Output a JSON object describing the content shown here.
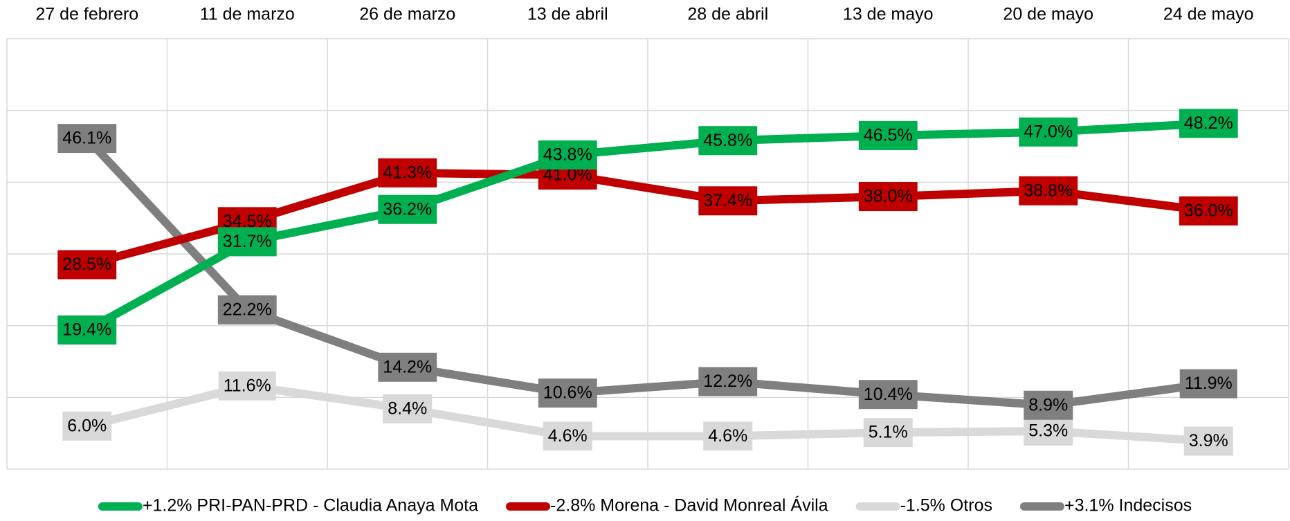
{
  "chart_data": {
    "type": "line",
    "categories": [
      "27 de febrero",
      "11 de marzo",
      "26 de marzo",
      "13 de abril",
      "28 de abril",
      "13 de mayo",
      "20 de mayo",
      "24 de mayo"
    ],
    "ylim": [
      0,
      60
    ],
    "yticks": [
      0,
      10,
      20,
      30,
      40,
      50,
      60
    ],
    "grid": true,
    "legend": "bottom",
    "series": [
      {
        "name": "+1.2% PRI-PAN-PRD - Claudia Anaya Mota",
        "color": "#00b050",
        "label_text_color": "#000000",
        "values": [
          19.4,
          31.7,
          36.2,
          43.8,
          45.8,
          46.5,
          47.0,
          48.2
        ],
        "value_labels": [
          "19.4%",
          "31.7%",
          "36.2%",
          "43.8%",
          "45.8%",
          "46.5%",
          "47.0%",
          "48.2%"
        ]
      },
      {
        "name": "-2.8% Morena - David Monreal Ávila",
        "color": "#c00000",
        "label_text_color": "#ffffff",
        "values": [
          28.5,
          34.5,
          41.3,
          41.0,
          37.4,
          38.0,
          38.8,
          36.0
        ],
        "value_labels": [
          "28.5%",
          "34.5%",
          "41.3%",
          "41.0%",
          "37.4%",
          "38.0%",
          "38.8%",
          "36.0%"
        ]
      },
      {
        "name": "-1.5% Otros",
        "color": "#d9d9d9",
        "label_text_color": "#000000",
        "values": [
          6.0,
          11.6,
          8.4,
          4.6,
          4.6,
          5.1,
          5.3,
          3.9
        ],
        "value_labels": [
          "6.0%",
          "11.6%",
          "8.4%",
          "4.6%",
          "4.6%",
          "5.1%",
          "5.3%",
          "3.9%"
        ]
      },
      {
        "name": "+3.1% Indecisos",
        "color": "#7f7f7f",
        "label_text_color": "#000000",
        "values": [
          46.1,
          22.2,
          14.2,
          10.6,
          12.2,
          10.4,
          8.9,
          11.9
        ],
        "value_labels": [
          "46.1%",
          "22.2%",
          "14.2%",
          "10.6%",
          "12.2%",
          "10.4%",
          "8.9%",
          "11.9%"
        ]
      }
    ]
  }
}
